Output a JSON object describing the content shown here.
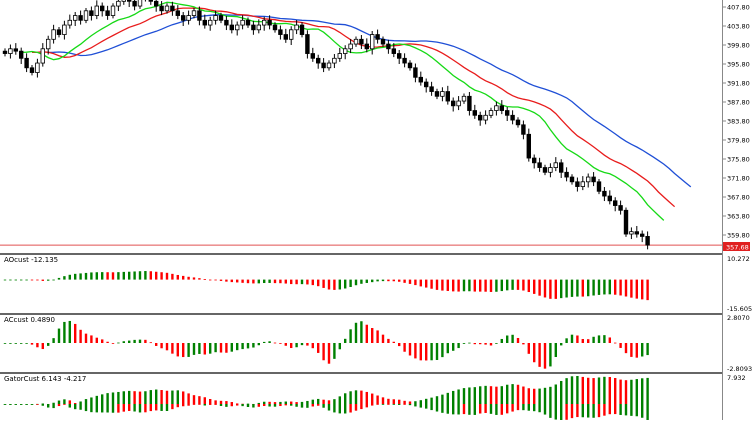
{
  "chart_data": [
    {
      "type": "candlestick",
      "title": "",
      "y_ticks": [
        "407.80",
        "403.80",
        "399.80",
        "395.80",
        "391.80",
        "387.80",
        "383.80",
        "379.80",
        "375.80",
        "371.80",
        "367.80",
        "363.80",
        "359.80"
      ],
      "ylim": [
        357.0,
        409.0
      ],
      "current_price_label": "357.68",
      "current_price": 357.68,
      "colors": {
        "bull": "#ffffff",
        "bear": "#000000",
        "jaw": "#1f4fd6",
        "teeth": "#e81c1c",
        "lips": "#16d916",
        "price_line": "#e05050"
      },
      "close": [
        398,
        399,
        398.5,
        397,
        395,
        394,
        396,
        399,
        401,
        403,
        402,
        404,
        405,
        406,
        405,
        407,
        406,
        408,
        407,
        406,
        408,
        409,
        410,
        409,
        408,
        410,
        411,
        409,
        408,
        407,
        408,
        407,
        406,
        405,
        406,
        407,
        405,
        404,
        405,
        406,
        405,
        404,
        403,
        404,
        405,
        404,
        403,
        404,
        405,
        404,
        403,
        402,
        401,
        403,
        404,
        402,
        398,
        397,
        396,
        395,
        396,
        397,
        398,
        399,
        400,
        401,
        400,
        399,
        402,
        401,
        400,
        399,
        398,
        397,
        396,
        395,
        393,
        392,
        391,
        390,
        389,
        390,
        388,
        387,
        388,
        389,
        386,
        385,
        384,
        385,
        386,
        387,
        386,
        385,
        384,
        383,
        381,
        376,
        375,
        374,
        373,
        374,
        375,
        373,
        372,
        371,
        370,
        371,
        372,
        371,
        369,
        368,
        367,
        366,
        365,
        360,
        360.5,
        360,
        359.5,
        357.68
      ],
      "series": [
        {
          "indicator": "alligator-jaw",
          "period": 13,
          "shift": 8
        },
        {
          "indicator": "alligator-teeth",
          "period": 8,
          "shift": 5
        },
        {
          "indicator": "alligator-lips",
          "period": 5,
          "shift": 3
        }
      ]
    },
    {
      "type": "bar",
      "label": "AOcust -12.135",
      "scale_top": "10.272",
      "scale_bottom": "-15.605",
      "colors": {
        "up": "#008000",
        "down": "#ff0000"
      }
    },
    {
      "type": "bar",
      "label": "ACcust 0.4890",
      "scale_top": "2.8070",
      "scale_bottom": "-2.8093",
      "colors": {
        "up": "#008000",
        "down": "#ff0000"
      }
    },
    {
      "type": "bar",
      "label": "GatorCust 6.143 -4.217",
      "scale_top": "7.932",
      "colors": {
        "up": "#008000",
        "down": "#ff0000"
      }
    }
  ]
}
